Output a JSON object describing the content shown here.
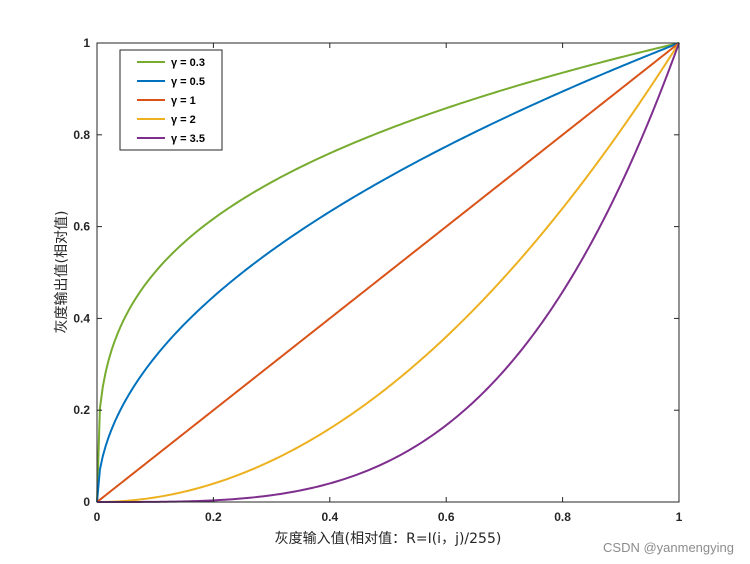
{
  "chart_data": {
    "type": "line",
    "xlabel": "灰度输入值(相对值：R=I(i，j)/255)",
    "ylabel": "灰度输出值(相对值)",
    "xlim": [
      0,
      1
    ],
    "ylim": [
      0,
      1
    ],
    "x_ticks": [
      "0",
      "0.2",
      "0.4",
      "0.6",
      "0.8",
      "1"
    ],
    "y_ticks": [
      "0",
      "0.2",
      "0.4",
      "0.6",
      "0.8",
      "1"
    ],
    "grid": false,
    "legend_position": "top-left",
    "series": [
      {
        "name": "γ = 0.3",
        "gamma": 0.3,
        "color": "#77AC30"
      },
      {
        "name": "γ = 0.5",
        "gamma": 0.5,
        "color": "#0072BD"
      },
      {
        "name": "γ = 1",
        "gamma": 1,
        "color": "#D95319"
      },
      {
        "name": "γ = 2",
        "gamma": 2,
        "color": "#EDB120"
      },
      {
        "name": "γ = 3.5",
        "gamma": 3.5,
        "color": "#7E2F8E"
      }
    ],
    "x": [
      0,
      0.01,
      0.05,
      0.1,
      0.2,
      0.3,
      0.4,
      0.5,
      0.6,
      0.7,
      0.8,
      0.9,
      1
    ]
  },
  "watermark": "CSDN @yanmengying"
}
